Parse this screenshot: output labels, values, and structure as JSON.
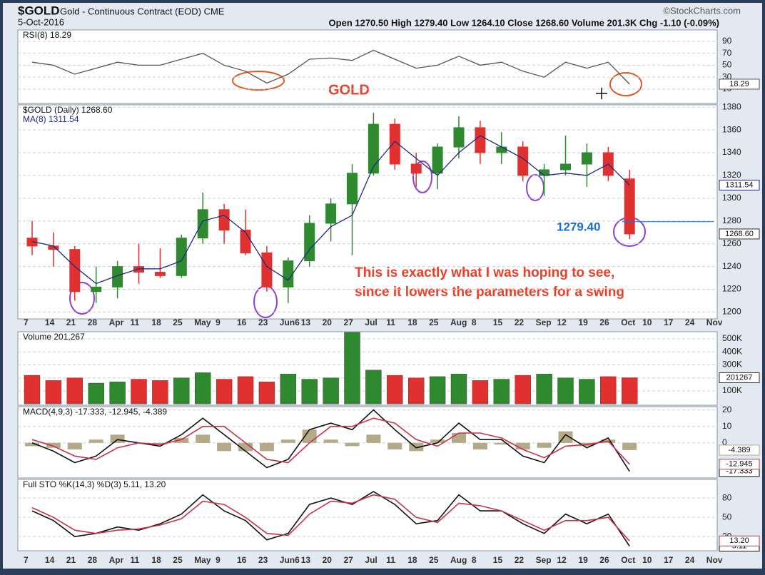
{
  "header": {
    "symbol": "$GOLD",
    "name": "Gold - Continuous Contract (EOD) CME",
    "date": "5-Oct-2016",
    "quote": "Open 1270.50  High 1279.40  Low 1264.10  Close 1268.60  Volume 201.3K  Chg -1.10 (-0.09%)",
    "source": "©StockCharts.com"
  },
  "annotations": {
    "gold": "GOLD",
    "level_label": "1279.40",
    "level": 1279.4,
    "comment": [
      "This is exactly what I was hoping to see,",
      "since it lowers the parameters for a swing"
    ]
  },
  "chart_data": [
    {
      "type": "line",
      "title": "RSI(8) 18.29",
      "color": "#555555",
      "values": [
        55,
        50,
        35,
        45,
        55,
        50,
        50,
        60,
        70,
        50,
        40,
        20,
        35,
        60,
        62,
        58,
        75,
        60,
        45,
        50,
        65,
        50,
        55,
        40,
        30,
        55,
        45,
        55,
        18.29,
        null,
        null,
        null,
        null
      ],
      "ylim": [
        -14,
        109
      ],
      "yticks": [
        90,
        70,
        50,
        30,
        10
      ]
    },
    {
      "type": "candlestick",
      "title": "$GOLD (Daily) 1268.60",
      "up_color": "#2f8a2f",
      "down_color": "#e0302f",
      "categories": [
        "7",
        "14",
        "21",
        "28",
        "Apr",
        "11",
        "18",
        "25",
        "May",
        "9",
        "16",
        "23",
        "Jun6",
        "13",
        "20",
        "27",
        "Jul",
        "11",
        "18",
        "25",
        "Aug",
        "8",
        "15",
        "22",
        "Sep",
        "12",
        "19",
        "26",
        "Oct",
        "10",
        "17",
        "24",
        "Nov"
      ],
      "open": [
        1265,
        1258,
        1255,
        1218,
        1222,
        1240,
        1235,
        1232,
        1265,
        1290,
        1272,
        1252,
        1222,
        1245,
        1278,
        1295,
        1322,
        1365,
        1330,
        1322,
        1345,
        1362,
        1340,
        1345,
        1320,
        1325,
        1330,
        1340,
        1317,
        null,
        null,
        null,
        null
      ],
      "high": [
        1280,
        1270,
        1258,
        1240,
        1245,
        1260,
        1256,
        1268,
        1305,
        1295,
        1290,
        1258,
        1248,
        1285,
        1300,
        1330,
        1375,
        1370,
        1340,
        1348,
        1372,
        1368,
        1358,
        1350,
        1330,
        1355,
        1348,
        1345,
        1325,
        null,
        null,
        null,
        null
      ],
      "low": [
        1250,
        1240,
        1210,
        1208,
        1212,
        1225,
        1230,
        1230,
        1260,
        1260,
        1250,
        1218,
        1208,
        1240,
        1262,
        1250,
        1320,
        1325,
        1310,
        1308,
        1335,
        1330,
        1330,
        1315,
        1302,
        1320,
        1310,
        1315,
        1264.1,
        null,
        null,
        null,
        null
      ],
      "close": [
        1258,
        1255,
        1218,
        1222,
        1240,
        1235,
        1232,
        1265,
        1290,
        1272,
        1252,
        1222,
        1245,
        1278,
        1295,
        1322,
        1365,
        1330,
        1322,
        1345,
        1362,
        1340,
        1345,
        1320,
        1325,
        1330,
        1340,
        1320,
        1268.6,
        null,
        null,
        null,
        null
      ],
      "last_close_label": "1268.60",
      "ma": {
        "name": "MA(8) 1311.54",
        "color": "#1f2a80",
        "values": [
          1262,
          1258,
          1240,
          1225,
          1232,
          1238,
          1238,
          1245,
          1280,
          1285,
          1270,
          1240,
          1228,
          1255,
          1275,
          1285,
          1328,
          1350,
          1335,
          1320,
          1340,
          1355,
          1345,
          1335,
          1320,
          1322,
          1320,
          1330,
          1311.54,
          null,
          null,
          null,
          null
        ]
      },
      "ylim": [
        1194,
        1382
      ],
      "yticks": [
        1380,
        1360,
        1340,
        1320,
        1300,
        1280,
        1260,
        1240,
        1220,
        1200
      ]
    },
    {
      "type": "bar",
      "title": "Volume 201,267",
      "values": [
        220000,
        180000,
        200000,
        160000,
        170000,
        190000,
        180000,
        200000,
        240000,
        190000,
        210000,
        170000,
        230000,
        190000,
        200000,
        550000,
        260000,
        220000,
        200000,
        210000,
        230000,
        180000,
        190000,
        220000,
        230000,
        200000,
        190000,
        210000,
        201267,
        null,
        null,
        null,
        null
      ],
      "ylim": [
        -10000,
        555000
      ],
      "yticks": [
        {
          "value": 500000,
          "label": "500K"
        },
        {
          "value": 400000,
          "label": "400K"
        },
        {
          "value": 300000,
          "label": "300K"
        },
        {
          "value": 200000,
          "label": "200K"
        },
        {
          "value": 100000,
          "label": "100K"
        }
      ]
    },
    {
      "type": "line",
      "title": "MACD(4,9,3) -17.333, -12.945, -4.389",
      "series": [
        {
          "color": "#111111",
          "values": [
            0,
            -5,
            -12,
            -8,
            2,
            0,
            -2,
            5,
            15,
            5,
            -5,
            -15,
            -10,
            8,
            12,
            8,
            20,
            8,
            -3,
            0,
            12,
            2,
            2,
            -8,
            -12,
            5,
            -3,
            3,
            -17.333,
            null,
            null,
            null,
            null
          ]
        },
        {
          "color": "#c8324a",
          "values": [
            2,
            -2,
            -8,
            -10,
            -3,
            0,
            -1,
            2,
            10,
            10,
            0,
            -10,
            -12,
            0,
            10,
            10,
            15,
            12,
            2,
            -2,
            6,
            6,
            3,
            -4,
            -9,
            -2,
            -1,
            1,
            -12.945,
            null,
            null,
            null,
            null
          ]
        }
      ],
      "histogram": {
        "color": "#b5aa88",
        "values": [
          -2,
          -3,
          -4,
          2,
          5,
          0,
          -1,
          3,
          5,
          -5,
          -5,
          -5,
          2,
          8,
          2,
          -2,
          5,
          -4,
          -5,
          2,
          6,
          -4,
          -1,
          -4,
          -3,
          7,
          -2,
          2,
          -4.389,
          null,
          null,
          null,
          null
        ]
      },
      "ylim": [
        -21.3,
        22
      ],
      "yticks": [
        20,
        10,
        0
      ]
    },
    {
      "type": "line",
      "title": "Full STO %K(14,3) %D(3) 5.11, 13.20",
      "categories": [
        "7",
        "14",
        "21",
        "28",
        "Apr",
        "11",
        "18",
        "25",
        "May",
        "9",
        "16",
        "23",
        "Jun6",
        "13",
        "20",
        "27",
        "Jul",
        "11",
        "18",
        "25",
        "Aug",
        "8",
        "15",
        "22",
        "Sep",
        "12",
        "19",
        "26",
        "Oct",
        "10",
        "17",
        "24",
        "Nov"
      ],
      "series": [
        {
          "color": "#111111",
          "values": [
            60,
            45,
            20,
            25,
            35,
            30,
            40,
            55,
            85,
            60,
            45,
            15,
            25,
            70,
            80,
            70,
            90,
            70,
            40,
            45,
            85,
            60,
            60,
            40,
            25,
            55,
            40,
            55,
            5.11,
            null,
            null,
            null,
            null
          ]
        },
        {
          "color": "#c8324a",
          "last_value_label": "13.20",
          "values": [
            65,
            50,
            30,
            25,
            30,
            32,
            38,
            48,
            75,
            70,
            50,
            25,
            22,
            55,
            75,
            72,
            85,
            78,
            50,
            42,
            72,
            68,
            60,
            45,
            30,
            45,
            45,
            50,
            13.2,
            null,
            null,
            null,
            null
          ]
        }
      ],
      "ylim": [
        -2,
        109
      ],
      "yticks": [
        80,
        50,
        20
      ]
    }
  ]
}
